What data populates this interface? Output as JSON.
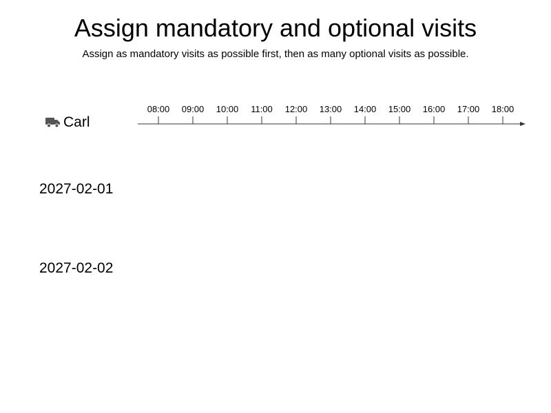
{
  "header": {
    "title": "Assign mandatory and optional visits",
    "subtitle": "Assign as mandatory visits as possible first, then as many optional visits as possible."
  },
  "vehicle": {
    "icon": "truck-icon",
    "name": "Carl"
  },
  "timeline": {
    "hours": [
      "08:00",
      "09:00",
      "10:00",
      "11:00",
      "12:00",
      "13:00",
      "14:00",
      "15:00",
      "16:00",
      "17:00",
      "18:00"
    ],
    "axis_color": "#333333"
  },
  "dates": [
    "2027-02-01",
    "2027-02-02"
  ]
}
